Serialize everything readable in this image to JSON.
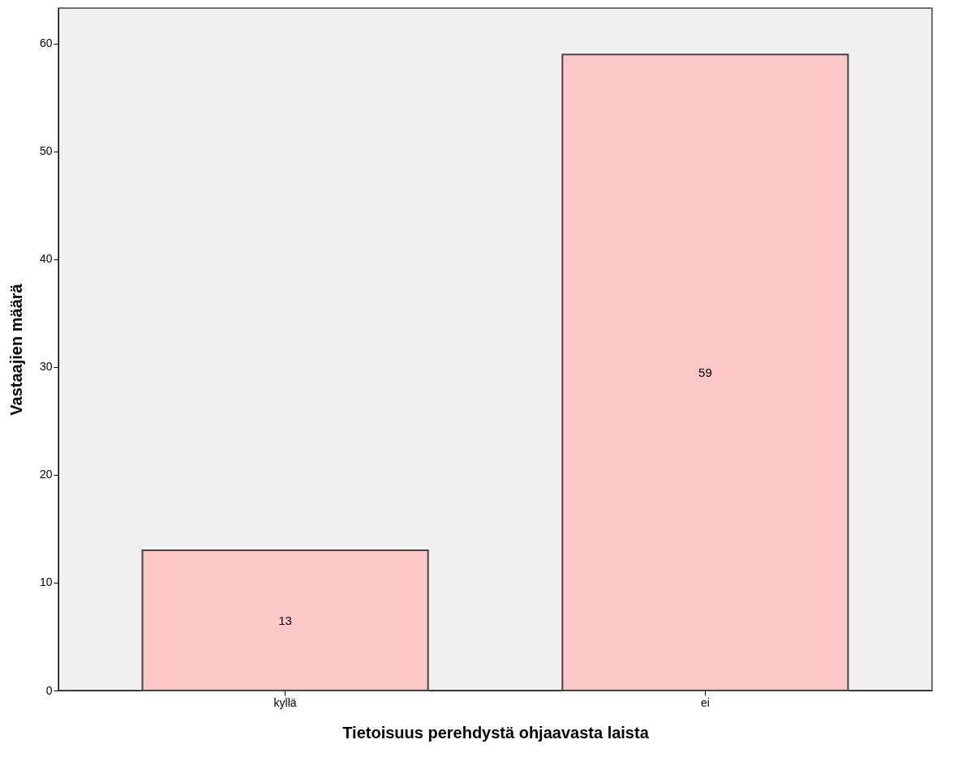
{
  "chart_data": {
    "type": "bar",
    "xlabel": "Tietoisuus perehdystä ohjaavasta laista",
    "ylabel": "Vastaajien määrä",
    "categories": [
      "kyllä",
      "ei"
    ],
    "values": [
      13,
      59
    ],
    "color": "#ffc8c8",
    "ylim": [
      0,
      63.3
    ],
    "yticks": [
      0,
      10,
      20,
      30,
      40,
      50,
      60
    ],
    "grid": false,
    "data_labels": true
  }
}
